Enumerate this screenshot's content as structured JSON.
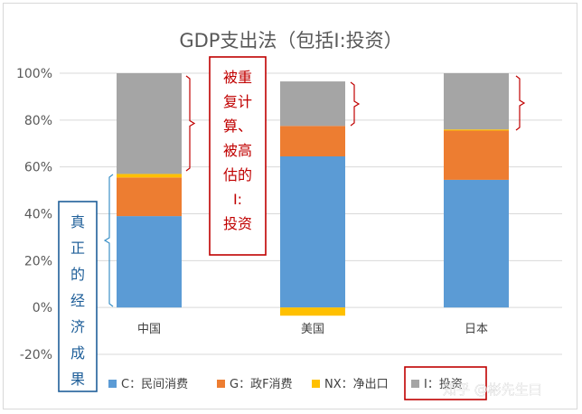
{
  "chart_data": {
    "type": "bar",
    "stacked": true,
    "title": "GDP支出法（包括I:投资）",
    "categories": [
      "中国",
      "美国",
      "日本"
    ],
    "series": [
      {
        "name": "C：民间消费",
        "color": "#5b9bd5",
        "values": [
          39,
          64.5,
          54.5
        ]
      },
      {
        "name": "G：政F消费",
        "color": "#ed7d31",
        "values": [
          16.5,
          13,
          21
        ]
      },
      {
        "name": "NX：净出口",
        "color": "#ffc000",
        "values": [
          1.5,
          -3.5,
          0.5
        ]
      },
      {
        "name": "I：投资",
        "color": "#a5a5a5",
        "values": [
          43,
          19,
          24
        ]
      }
    ],
    "ylim": [
      -20,
      100
    ],
    "yticks": [
      "-20%",
      "0%",
      "20%",
      "40%",
      "60%",
      "80%",
      "100%"
    ],
    "gridlines": true,
    "legend_position": "bottom"
  },
  "annotations": {
    "overestimated_label": "被重复计算、被高估的I:投资",
    "real_result_label": "真正的经济成果",
    "watermark": "知乎 @彬先生曰"
  }
}
